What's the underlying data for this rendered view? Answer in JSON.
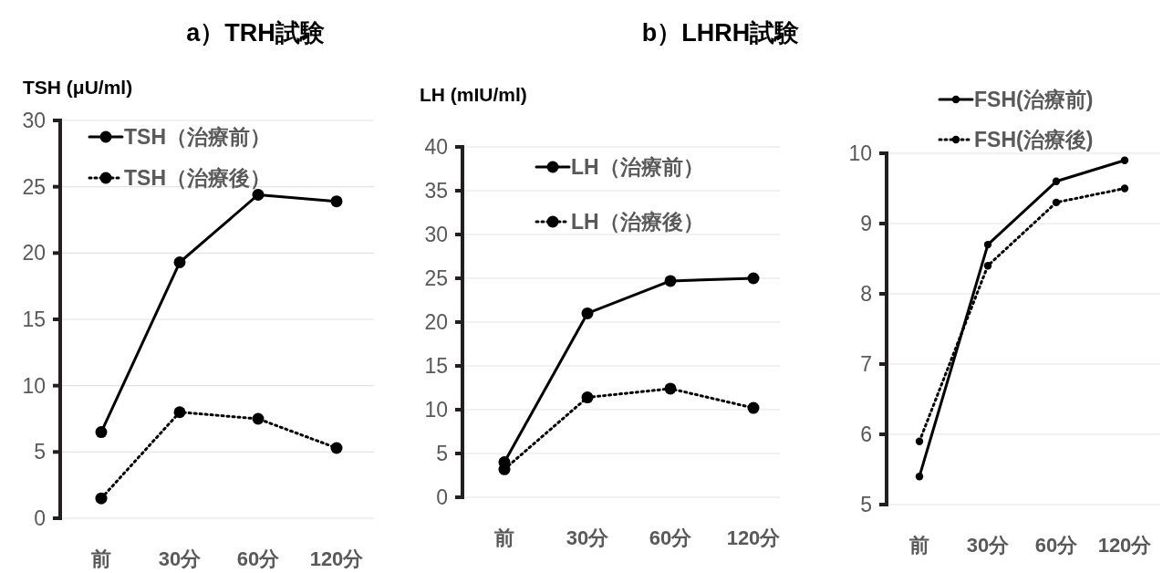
{
  "chart_data": [
    {
      "type": "line",
      "title": "a）TRH試験",
      "ylabel": "TSH (μU/ml)",
      "categories": [
        "前",
        "30分",
        "60分",
        "120分"
      ],
      "ylim": [
        0,
        30
      ],
      "yticks": [
        0,
        5,
        10,
        15,
        20,
        25,
        30
      ],
      "grid": "y",
      "legend": "top left",
      "marker": "circle",
      "series": [
        {
          "name": "TSH（治療前）",
          "color": "#000000",
          "line_style": "solid",
          "values": [
            6.5,
            19.3,
            24.4,
            23.9
          ]
        },
        {
          "name": "TSH（治療後）",
          "color": "#000000",
          "line_style": "dotted",
          "values": [
            1.5,
            8.0,
            7.5,
            5.3
          ]
        }
      ]
    },
    {
      "type": "line",
      "title": "b）LHRH試験",
      "ylabel": "LH (mIU/ml)",
      "categories": [
        "前",
        "30分",
        "60分",
        "120分"
      ],
      "ylim": [
        0,
        40
      ],
      "yticks": [
        0,
        5,
        10,
        15,
        20,
        25,
        30,
        35,
        40
      ],
      "grid": "y",
      "legend": "top",
      "marker": "circle",
      "series": [
        {
          "name": "LH（治療前）",
          "color": "#000000",
          "line_style": "solid",
          "values": [
            4.0,
            21.0,
            24.7,
            25.0
          ]
        },
        {
          "name": "LH（治療後）",
          "color": "#000000",
          "line_style": "dotted",
          "values": [
            3.2,
            11.4,
            12.4,
            10.2
          ]
        }
      ]
    },
    {
      "type": "line",
      "categories": [
        "前",
        "30分",
        "60分",
        "120分"
      ],
      "ylim": [
        5,
        10
      ],
      "yticks": [
        5,
        6,
        7,
        8,
        9,
        10
      ],
      "grid": "y",
      "legend": "top right",
      "marker": "circle",
      "series": [
        {
          "name": "FSH(治療前)",
          "color": "#000000",
          "line_style": "solid",
          "values": [
            5.4,
            8.7,
            9.6,
            9.9
          ]
        },
        {
          "name": "FSH(治療後)",
          "color": "#000000",
          "line_style": "dotted",
          "values": [
            5.9,
            8.4,
            9.3,
            9.5
          ]
        }
      ]
    }
  ]
}
